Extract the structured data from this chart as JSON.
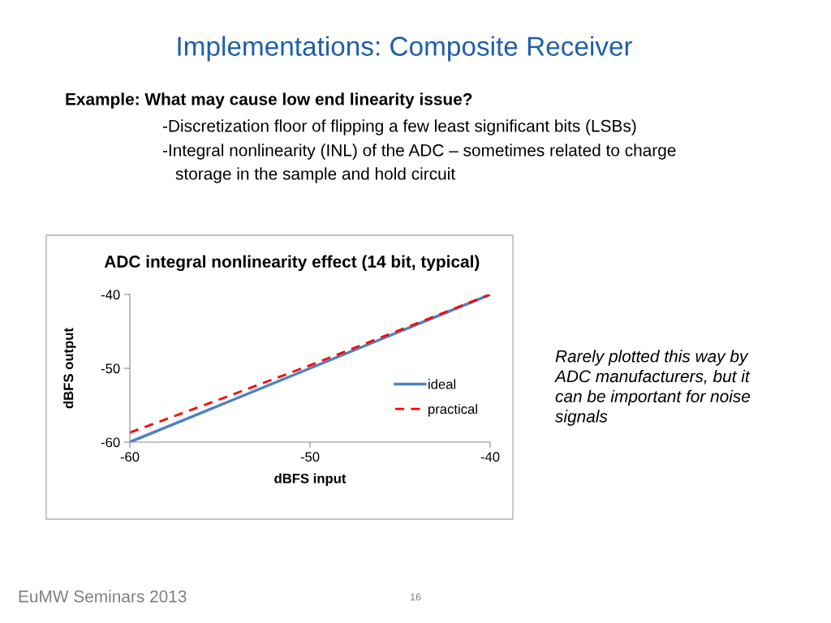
{
  "chart_data": {
    "type": "line",
    "title": "ADC integral nonlinearity effect (14 bit, typical)",
    "xlabel": "dBFS input",
    "ylabel": "dBFS output",
    "x": [
      -60,
      -55,
      -50,
      -45,
      -40
    ],
    "series": [
      {
        "name": "ideal",
        "color": "#4f81bd",
        "values": [
          -60,
          -55,
          -50,
          -45,
          -40
        ],
        "line_style": "solid"
      },
      {
        "name": "practical",
        "color": "#ff0000",
        "values": [
          -58.7,
          -54.2,
          -49.6,
          -44.8,
          -40
        ],
        "line_style": "dashed"
      }
    ],
    "xlim": [
      -60,
      -40
    ],
    "xticks": [
      -60,
      -50,
      -40
    ],
    "ylim": [
      -60,
      -40
    ],
    "yticks": [
      -60,
      -50,
      -40
    ],
    "grid": false,
    "legend": "right",
    "marker": "none",
    "annotations": [
      "Implementations: Composite Receiver",
      "Example: What may cause low end linearity issue?",
      "-Discretization floor of flipping a few least significant bits (LSBs)",
      "-Integral nonlinearity (INL) of the ADC – sometimes related to charge",
      "storage in the sample and hold circuit",
      "Rarely plotted this way by ADC manufacturers, but it can be important for noise signals",
      "EuMW Seminars 2013",
      "16"
    ]
  }
}
